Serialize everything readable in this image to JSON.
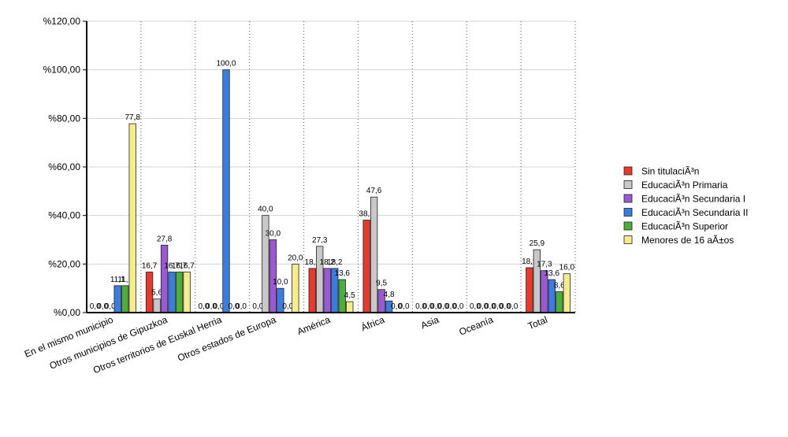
{
  "chart_data": {
    "type": "bar",
    "categories": [
      "En el mismo municipio",
      "Otros municipios de Gipuzkoa",
      "Otros territorios de Euskal Herria",
      "Otros estados de Europa",
      "América",
      "África",
      "Asia",
      "Oceanía",
      "Total"
    ],
    "series": [
      {
        "name": "Sin titulaciÃ³n",
        "color": "#e8392b",
        "values": [
          0.0,
          16.7,
          0.0,
          0.0,
          18.2,
          38.1,
          0.0,
          0.0,
          18.5
        ],
        "labels": [
          "0,0",
          "16,7",
          "0,0",
          "0,0",
          "18,2",
          "38,1",
          "0,0",
          "0,0",
          "18,5"
        ]
      },
      {
        "name": "EducaciÃ³n Primaria",
        "color": "#c8c8c8",
        "values": [
          0.0,
          5.6,
          0.0,
          40.0,
          27.3,
          47.6,
          0.0,
          0.0,
          25.9
        ],
        "labels": [
          "0,0",
          "5,6",
          "0,0",
          "40,0",
          "27,3",
          "47,6",
          "0,0",
          "0,0",
          "25,9"
        ]
      },
      {
        "name": "EducaciÃ³n Secundaria I",
        "color": "#9b59d6",
        "values": [
          0.0,
          27.8,
          0.0,
          30.0,
          18.2,
          9.5,
          0.0,
          0.0,
          17.3
        ],
        "labels": [
          "0,0",
          "27,8",
          "0,0",
          "30,0",
          "18,2",
          "9,5",
          "0,0",
          "0,0",
          "17,3"
        ]
      },
      {
        "name": "EducaciÃ³n Secundaria II",
        "color": "#3a7de0",
        "values": [
          11.1,
          16.7,
          100.0,
          10.0,
          18.2,
          4.8,
          0.0,
          0.0,
          13.6
        ],
        "labels": [
          "11,1",
          "16,7",
          "100,0",
          "10,0",
          "18,2",
          "4,8",
          "0,0",
          "0,0",
          "13,6"
        ]
      },
      {
        "name": "EducaciÃ³n Superior",
        "color": "#4caf3a",
        "values": [
          11.1,
          16.7,
          0.0,
          0.0,
          13.6,
          0.0,
          0.0,
          0.0,
          8.6
        ],
        "labels": [
          "11,1",
          "16,7",
          "0,0",
          "0,0",
          "13,6",
          "0,0",
          "0,0",
          "0,0",
          "8,6"
        ]
      },
      {
        "name": "Menores de 16 aÃ±os",
        "color": "#f7ec8a",
        "values": [
          77.8,
          16.7,
          0.0,
          20.0,
          4.5,
          0.0,
          0.0,
          0.0,
          16.0
        ],
        "labels": [
          "77,8",
          "16,7",
          "0,0",
          "20,0",
          "4,5",
          "0,0",
          "0,0",
          "0,0",
          "16,0"
        ]
      }
    ],
    "y_ticks": [
      {
        "value": 0,
        "label": "%0,00"
      },
      {
        "value": 20,
        "label": "%20,00"
      },
      {
        "value": 40,
        "label": "%40,00"
      },
      {
        "value": 60,
        "label": "%60,00"
      },
      {
        "value": 80,
        "label": "%80,00"
      },
      {
        "value": 100,
        "label": "%100,00"
      },
      {
        "value": 120,
        "label": "%120,00"
      }
    ],
    "ylim": [
      0,
      120
    ],
    "title": "",
    "xlabel": "",
    "ylabel": "",
    "grid": true,
    "legend_position": "right"
  }
}
